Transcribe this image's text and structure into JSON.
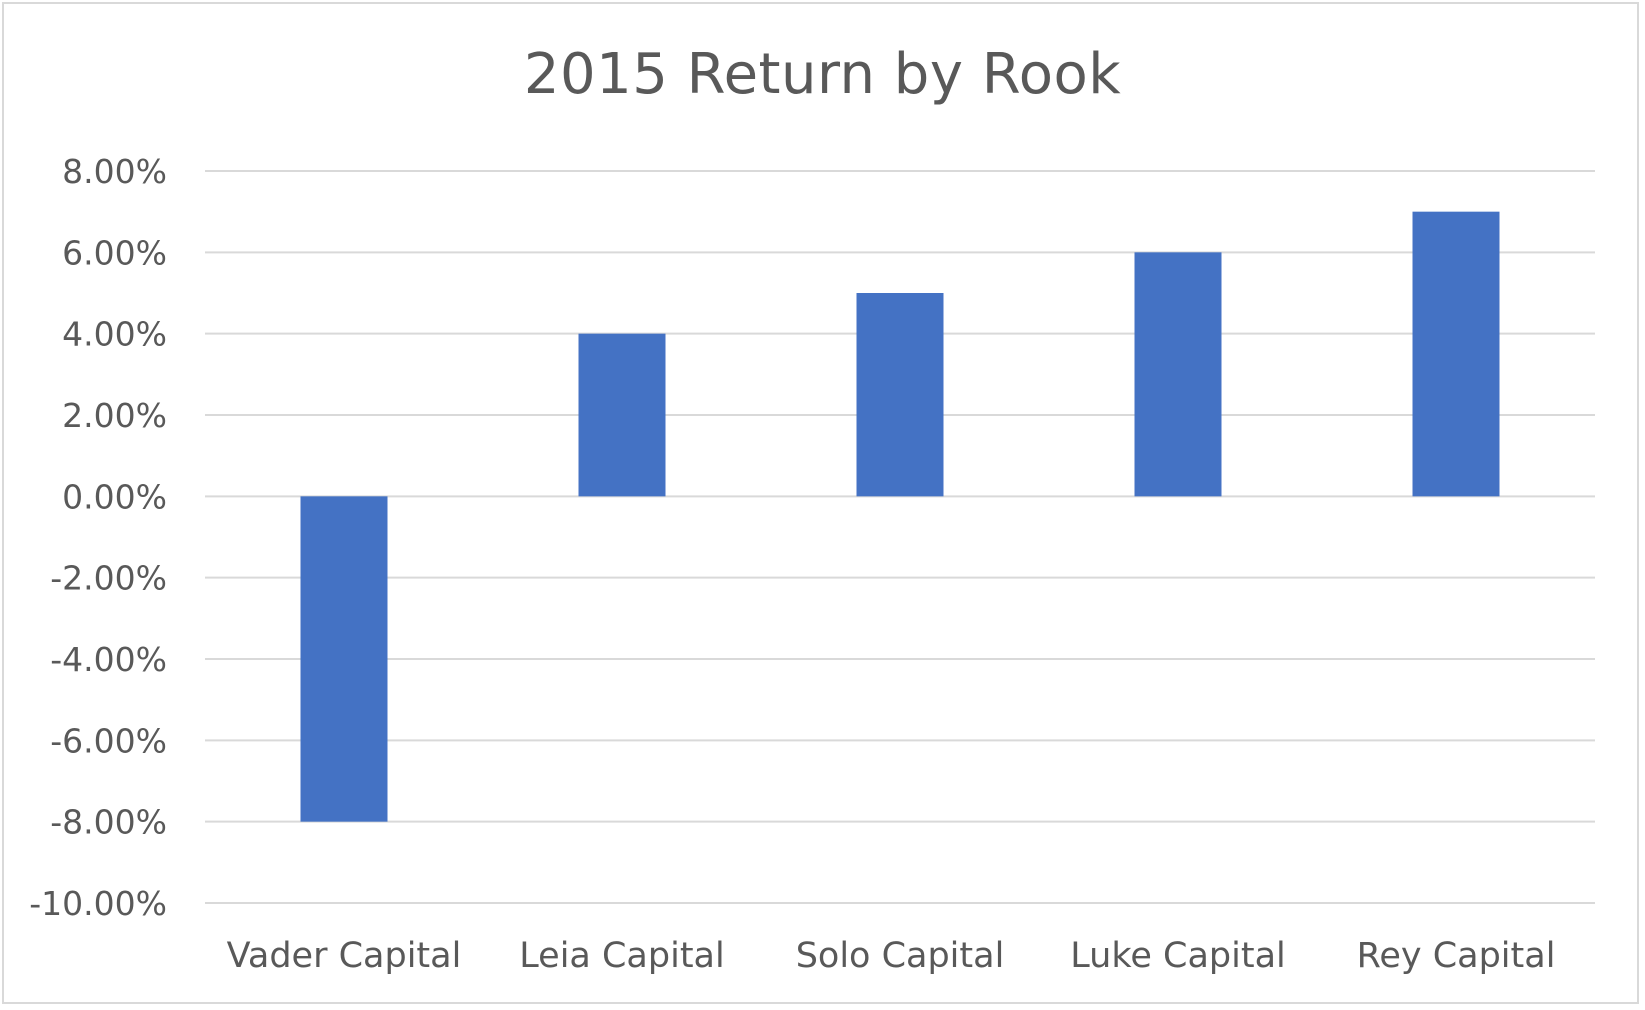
{
  "chart_data": {
    "type": "bar",
    "title": "2015 Return by Rook",
    "categories": [
      "Vader Capital",
      "Leia Capital",
      "Solo Capital",
      "Luke Capital",
      "Rey Capital"
    ],
    "values": [
      -0.08,
      0.04,
      0.05,
      0.06,
      0.07
    ],
    "ylim": [
      -0.1,
      0.08
    ],
    "yticks": [
      0.08,
      0.06,
      0.04,
      0.02,
      0.0,
      -0.02,
      -0.04,
      -0.06,
      -0.08,
      -0.1
    ],
    "ytick_labels": [
      "8.00%",
      "6.00%",
      "4.00%",
      "2.00%",
      "0.00%",
      "-2.00%",
      "-4.00%",
      "-6.00%",
      "-8.00%",
      "-10.00%"
    ],
    "bar_color": "#4472c4",
    "gridline_color": "#d9d9d9",
    "grid": true,
    "legend": "none"
  }
}
